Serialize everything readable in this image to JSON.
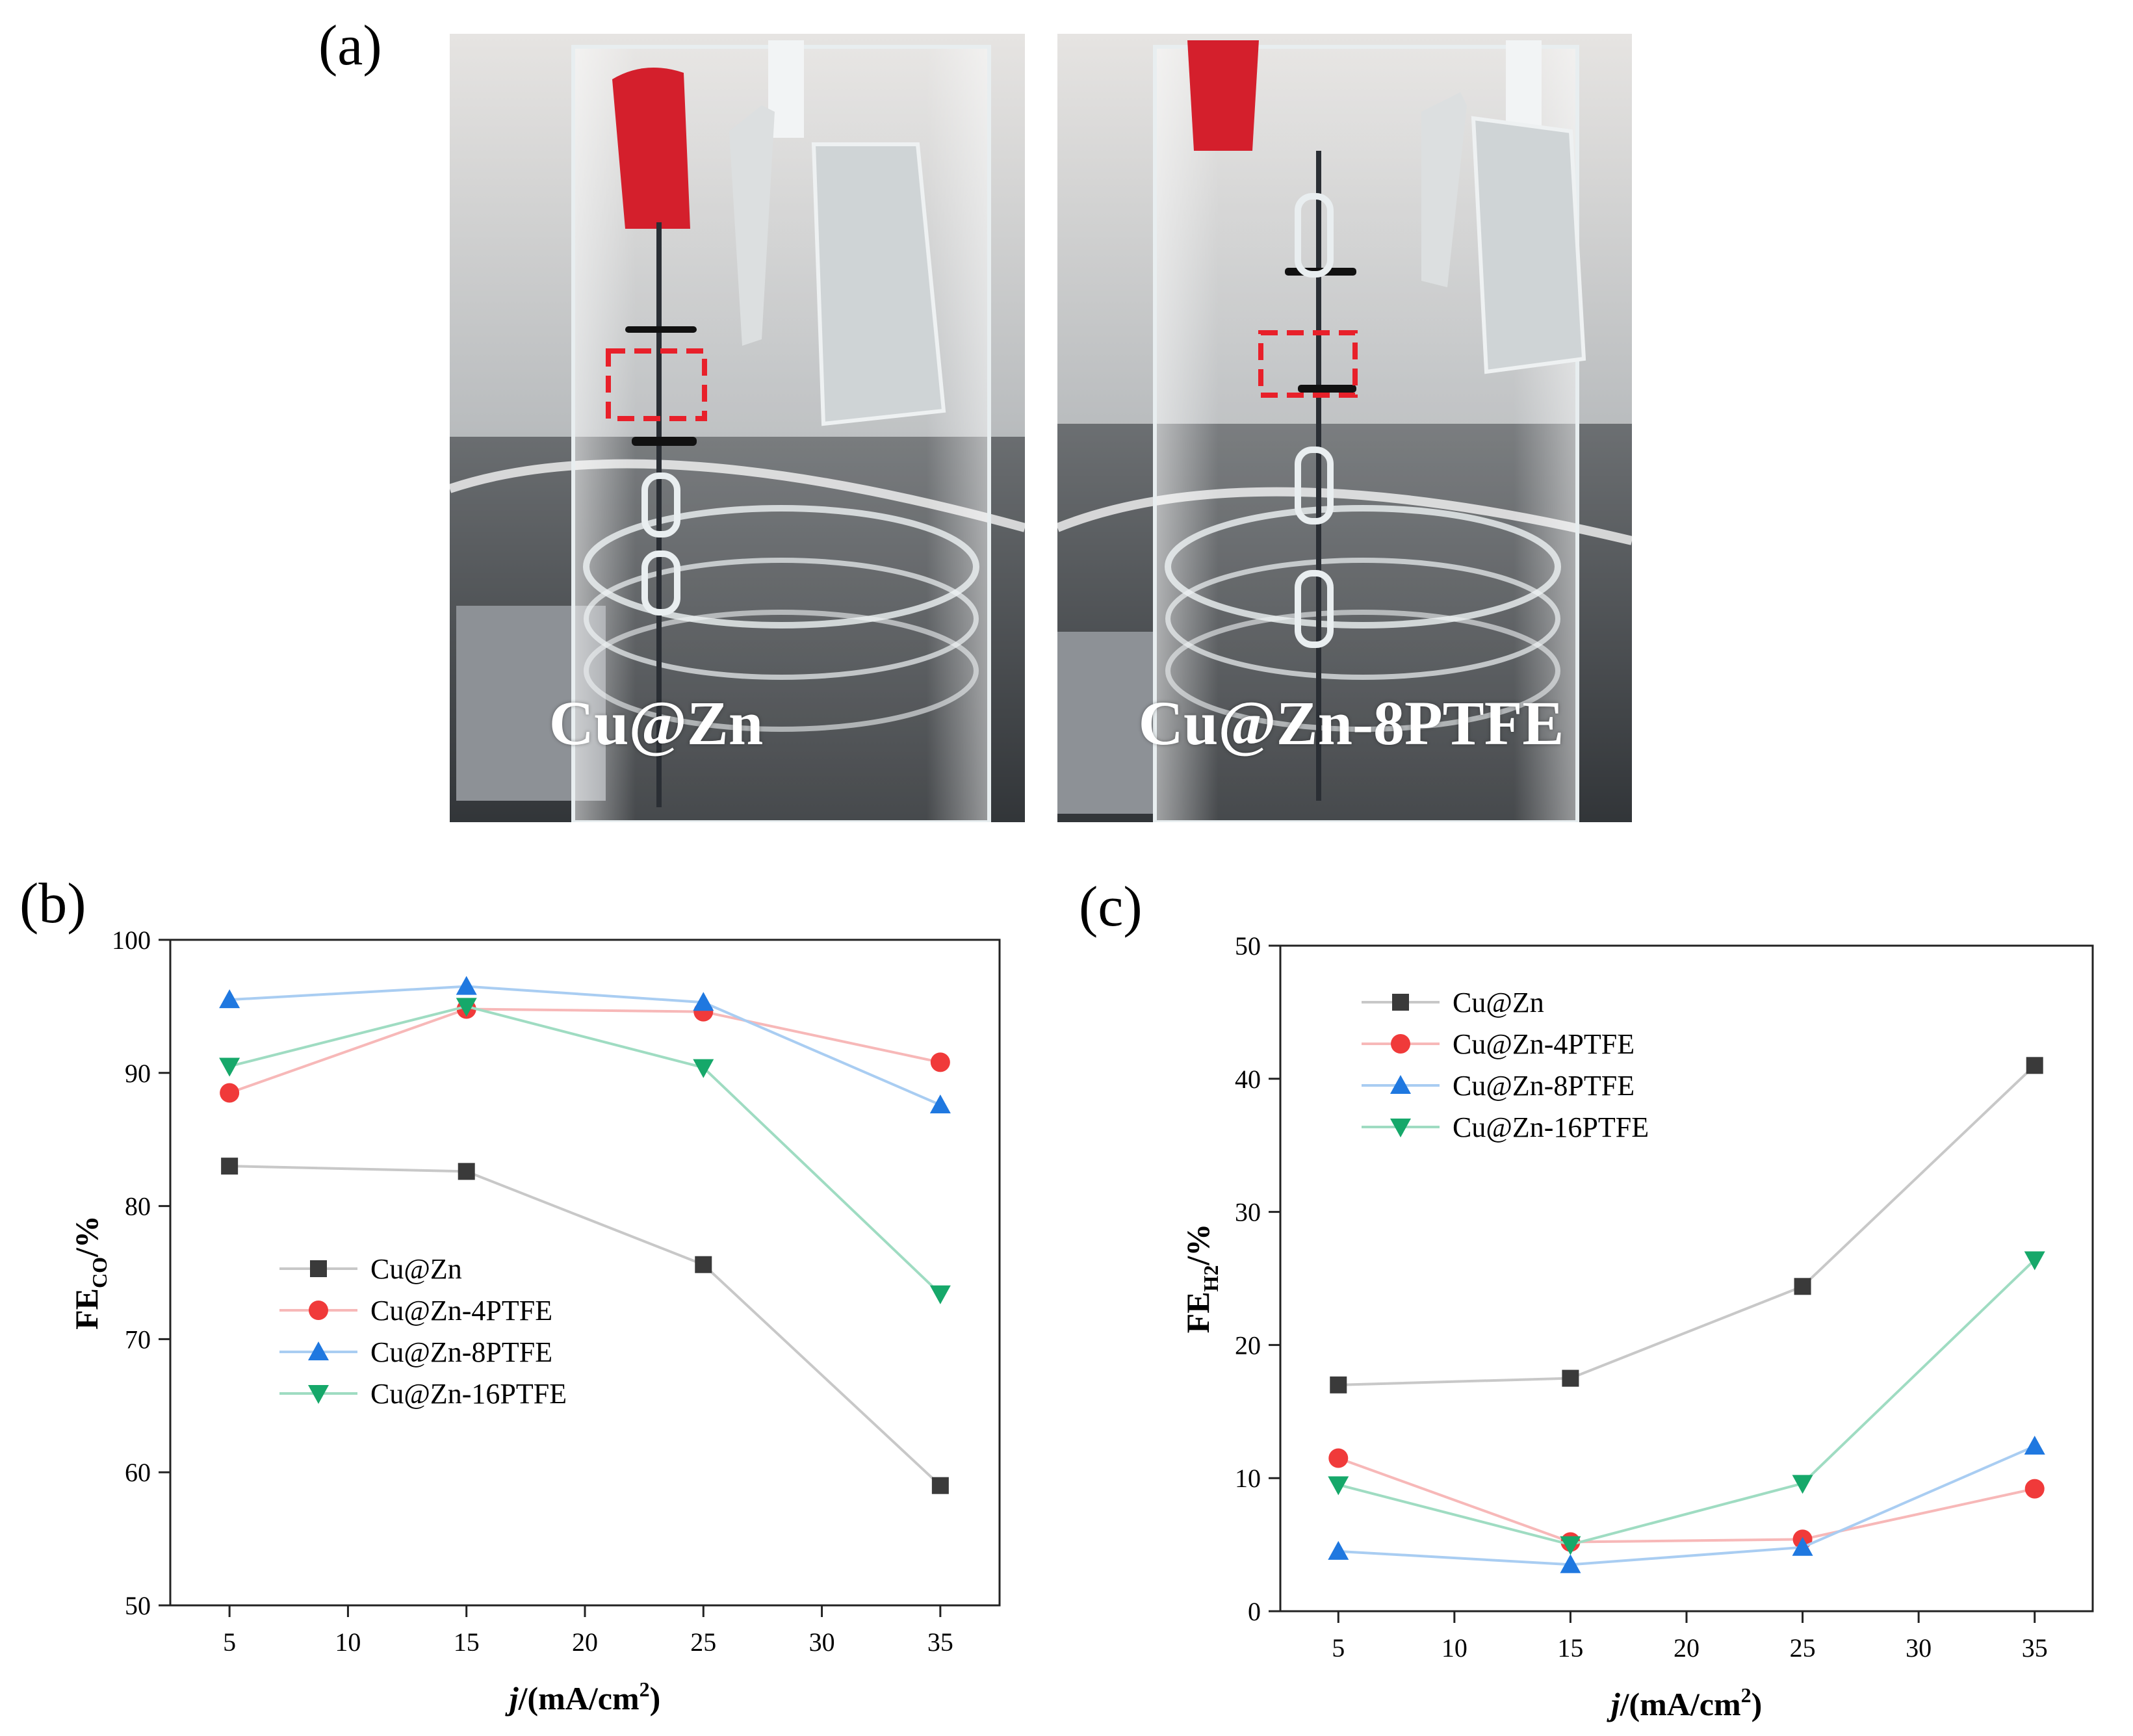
{
  "panels": {
    "a_label": "(a)",
    "b_label": "(b)",
    "c_label": "(c)"
  },
  "photos": [
    {
      "caption": "Cu@Zn"
    },
    {
      "caption": "Cu@Zn-8PTFE"
    }
  ],
  "colors": {
    "Cu@Zn": "#3a3a3a",
    "Cu@Zn-4PTFE": "#f03a3a",
    "Cu@Zn-8PTFE": "#1f78e0",
    "Cu@Zn-16PTFE": "#16a86a",
    "line_Cu@Zn": "#c8c8c8",
    "line_Cu@Zn-4PTFE": "#f7b8b8",
    "line_Cu@Zn-8PTFE": "#a9cdf2",
    "line_Cu@Zn-16PTFE": "#9fdcc2",
    "highlight_box": "#e8202a"
  },
  "chart_data": [
    {
      "type": "line",
      "panel": "b",
      "xlabel": "j/(mA/cm²)",
      "ylabel": "FE_CO/%",
      "xlim": [
        2.5,
        37.5
      ],
      "ylim": [
        50,
        100
      ],
      "xticks": [
        5,
        10,
        15,
        20,
        25,
        30,
        35
      ],
      "yticks": [
        50,
        60,
        70,
        80,
        90,
        100
      ],
      "legend_position": "center-left",
      "x": [
        5,
        15,
        25,
        35
      ],
      "series": [
        {
          "name": "Cu@Zn",
          "marker": "square",
          "values": [
            83.0,
            82.6,
            75.6,
            59.0
          ]
        },
        {
          "name": "Cu@Zn-4PTFE",
          "marker": "circle",
          "values": [
            88.5,
            94.8,
            94.6,
            90.8
          ]
        },
        {
          "name": "Cu@Zn-8PTFE",
          "marker": "triangle-up",
          "values": [
            95.5,
            96.5,
            95.3,
            87.6
          ]
        },
        {
          "name": "Cu@Zn-16PTFE",
          "marker": "triangle-down",
          "values": [
            90.5,
            95.0,
            90.4,
            73.4
          ]
        }
      ]
    },
    {
      "type": "line",
      "panel": "c",
      "xlabel": "j/(mA/cm²)",
      "ylabel": "FE_H2/%",
      "xlim": [
        2.5,
        37.5
      ],
      "ylim": [
        0,
        50
      ],
      "xticks": [
        5,
        10,
        15,
        20,
        25,
        30,
        35
      ],
      "yticks": [
        0,
        10,
        20,
        30,
        40,
        50
      ],
      "legend_position": "top-left",
      "x": [
        5,
        15,
        25,
        35
      ],
      "series": [
        {
          "name": "Cu@Zn",
          "marker": "square",
          "values": [
            17.0,
            17.5,
            24.4,
            41.0
          ]
        },
        {
          "name": "Cu@Zn-4PTFE",
          "marker": "circle",
          "values": [
            11.5,
            5.2,
            5.4,
            9.2
          ]
        },
        {
          "name": "Cu@Zn-8PTFE",
          "marker": "triangle-up",
          "values": [
            4.5,
            3.5,
            4.8,
            12.4
          ]
        },
        {
          "name": "Cu@Zn-16PTFE",
          "marker": "triangle-down",
          "values": [
            9.5,
            5.0,
            9.6,
            26.4
          ]
        }
      ]
    }
  ]
}
